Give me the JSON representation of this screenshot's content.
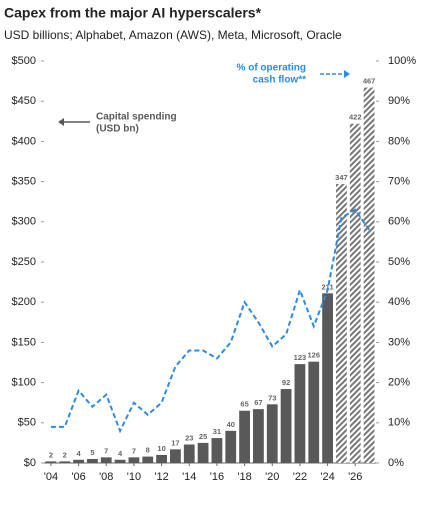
{
  "chart_data": {
    "type": "bar_line",
    "title": "Capex from the major AI hyperscalers*",
    "subtitle": "USD billions; Alphabet, Amazon (AWS), Meta, Microsoft, Oracle",
    "categories": [
      "'04",
      null,
      "'06",
      null,
      "'08",
      null,
      "'10",
      null,
      "'12",
      null,
      "'14",
      null,
      "'16",
      null,
      "'18",
      null,
      "'20",
      null,
      "'22",
      null,
      "'24",
      null,
      "'26",
      null
    ],
    "series": [
      {
        "name": "Capital spending (USD bn)",
        "type": "bar",
        "color": "#595959",
        "values": [
          2,
          2,
          4,
          5,
          7,
          4,
          7,
          8,
          10,
          17,
          23,
          25,
          31,
          40,
          65,
          67,
          73,
          92,
          123,
          126,
          211,
          347,
          422,
          467
        ],
        "hatched": [
          false,
          false,
          false,
          false,
          false,
          false,
          false,
          false,
          false,
          false,
          false,
          false,
          false,
          false,
          false,
          false,
          false,
          false,
          false,
          false,
          false,
          true,
          true,
          true
        ]
      },
      {
        "name": "% of operating cash flow**",
        "type": "line",
        "axis": "y2",
        "color": "#2a8be6",
        "dashed": true,
        "values": [
          9,
          9,
          18,
          14,
          17,
          8,
          15,
          12,
          15,
          24,
          28,
          28,
          26,
          30,
          40,
          35,
          29,
          32,
          43,
          34,
          43,
          61,
          63,
          58
        ]
      }
    ],
    "annotations": [
      {
        "lines": [
          "Capital spending",
          "(USD bn)"
        ],
        "arrow": "left",
        "color": "#595959"
      },
      {
        "lines": [
          "% of operating",
          "cash flow**"
        ],
        "arrow": "right",
        "color": "#2a8be6"
      }
    ],
    "ylim": [
      0,
      500
    ],
    "yticks": [
      {
        "value": 0,
        "label": "$0"
      },
      {
        "value": 50,
        "label": "$50"
      },
      {
        "value": 100,
        "label": "$100"
      },
      {
        "value": 150,
        "label": "$150"
      },
      {
        "value": 200,
        "label": "$200"
      },
      {
        "value": 250,
        "label": "$250"
      },
      {
        "value": 300,
        "label": "$300"
      },
      {
        "value": 350,
        "label": "$350"
      },
      {
        "value": 400,
        "label": "$400"
      },
      {
        "value": 450,
        "label": "$450"
      },
      {
        "value": 500,
        "label": "$500"
      }
    ],
    "y2lim": [
      0,
      100
    ],
    "y2ticks": [
      {
        "value": 0,
        "label": "0%"
      },
      {
        "value": 10,
        "label": "10%"
      },
      {
        "value": 20,
        "label": "20%"
      },
      {
        "value": 30,
        "label": "30%"
      },
      {
        "value": 40,
        "label": "40%"
      },
      {
        "value": 50,
        "label": "50%"
      },
      {
        "value": 60,
        "label": "60%"
      },
      {
        "value": 70,
        "label": "70%"
      },
      {
        "value": 80,
        "label": "80%"
      },
      {
        "value": 90,
        "label": "90%"
      },
      {
        "value": 100,
        "label": "100%"
      }
    ],
    "grid": false
  }
}
